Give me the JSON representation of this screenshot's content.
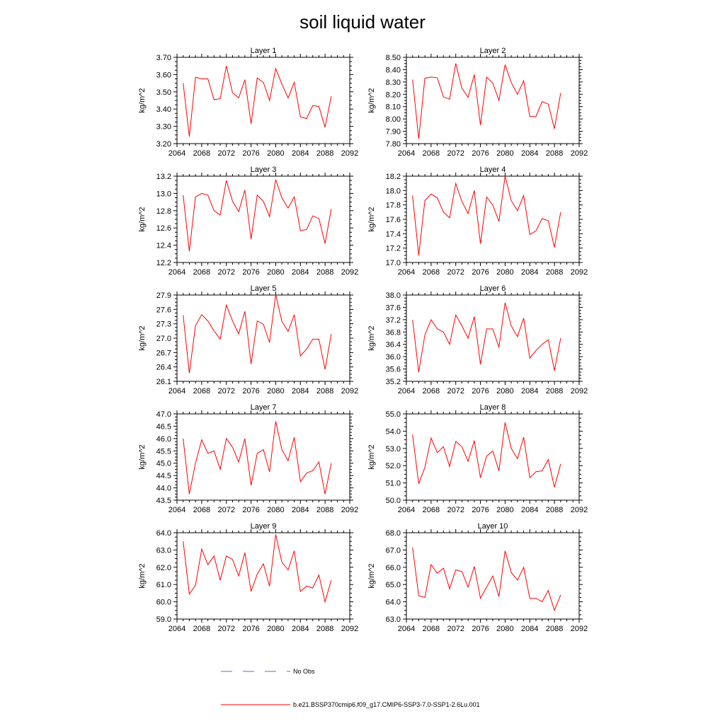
{
  "title": "soil liquid water",
  "colors": {
    "series": "#ff0000",
    "obs": "#6666cc",
    "axis": "#000000"
  },
  "legend": {
    "obs_label": "No Obs",
    "series_label": "b.e21.BSSP370cmip6.f09_g17.CMIP6-SSP3-7.0-SSP1-2.6Lu.001"
  },
  "chart_data": [
    {
      "type": "line",
      "title": "Layer 1",
      "ylabel": "kg/m^2",
      "xlim": [
        2064,
        2092
      ],
      "xticks": [
        2064,
        2068,
        2072,
        2076,
        2080,
        2084,
        2088,
        2092
      ],
      "ylim": [
        3.2,
        3.7
      ],
      "yticks": [
        "3.20",
        "3.30",
        "3.40",
        "3.50",
        "3.60",
        "3.70"
      ],
      "x": [
        2065,
        2066,
        2067,
        2068,
        2069,
        2070,
        2071,
        2072,
        2073,
        2074,
        2075,
        2076,
        2077,
        2078,
        2079,
        2080,
        2081,
        2082,
        2083,
        2084,
        2085,
        2086,
        2087,
        2088,
        2089
      ],
      "values": [
        3.55,
        3.24,
        3.585,
        3.575,
        3.575,
        3.455,
        3.46,
        3.65,
        3.495,
        3.465,
        3.57,
        3.315,
        3.58,
        3.555,
        3.45,
        3.635,
        3.545,
        3.465,
        3.555,
        3.355,
        3.345,
        3.42,
        3.415,
        3.295,
        3.475
      ]
    },
    {
      "type": "line",
      "title": "Layer 2",
      "ylabel": "kg/m^2",
      "xlim": [
        2064,
        2092
      ],
      "xticks": [
        2064,
        2068,
        2072,
        2076,
        2080,
        2084,
        2088,
        2092
      ],
      "ylim": [
        7.8,
        8.5
      ],
      "yticks": [
        "7.80",
        "7.90",
        "8.00",
        "8.10",
        "8.20",
        "8.30",
        "8.40",
        "8.50"
      ],
      "x": [
        2065,
        2066,
        2067,
        2068,
        2069,
        2070,
        2071,
        2072,
        2073,
        2074,
        2075,
        2076,
        2077,
        2078,
        2079,
        2080,
        2081,
        2082,
        2083,
        2084,
        2085,
        2086,
        2087,
        2088,
        2089
      ],
      "values": [
        8.32,
        7.84,
        8.33,
        8.34,
        8.335,
        8.18,
        8.16,
        8.45,
        8.25,
        8.175,
        8.36,
        7.95,
        8.34,
        8.29,
        8.15,
        8.44,
        8.295,
        8.2,
        8.31,
        8.02,
        8.02,
        8.14,
        8.12,
        7.92,
        8.21
      ]
    },
    {
      "type": "line",
      "title": "Layer 3",
      "ylabel": "kg/m^2",
      "xlim": [
        2064,
        2092
      ],
      "xticks": [
        2064,
        2068,
        2072,
        2076,
        2080,
        2084,
        2088,
        2092
      ],
      "ylim": [
        12.2,
        13.2
      ],
      "yticks": [
        "12.2",
        "12.4",
        "12.6",
        "12.8",
        "13.0",
        "13.2"
      ],
      "x": [
        2065,
        2066,
        2067,
        2068,
        2069,
        2070,
        2071,
        2072,
        2073,
        2074,
        2075,
        2076,
        2077,
        2078,
        2079,
        2080,
        2081,
        2082,
        2083,
        2084,
        2085,
        2086,
        2087,
        2088,
        2089
      ],
      "values": [
        12.98,
        12.33,
        12.96,
        13.0,
        12.98,
        12.8,
        12.75,
        13.15,
        12.91,
        12.79,
        13.04,
        12.47,
        12.98,
        12.91,
        12.73,
        13.16,
        12.95,
        12.83,
        12.96,
        12.57,
        12.58,
        12.74,
        12.71,
        12.42,
        12.82
      ]
    },
    {
      "type": "line",
      "title": "Layer 4",
      "ylabel": "kg/m^2",
      "xlim": [
        2064,
        2092
      ],
      "xticks": [
        2064,
        2068,
        2072,
        2076,
        2080,
        2084,
        2088,
        2092
      ],
      "ylim": [
        17.0,
        18.2
      ],
      "yticks": [
        "17.0",
        "17.2",
        "17.4",
        "17.6",
        "17.8",
        "18.0",
        "18.2"
      ],
      "x": [
        2065,
        2066,
        2067,
        2068,
        2069,
        2070,
        2071,
        2072,
        2073,
        2074,
        2075,
        2076,
        2077,
        2078,
        2079,
        2080,
        2081,
        2082,
        2083,
        2084,
        2085,
        2086,
        2087,
        2088,
        2089
      ],
      "values": [
        17.93,
        17.1,
        17.86,
        17.95,
        17.9,
        17.7,
        17.62,
        18.1,
        17.85,
        17.68,
        18.0,
        17.26,
        17.91,
        17.8,
        17.57,
        18.2,
        17.86,
        17.72,
        17.93,
        17.39,
        17.44,
        17.61,
        17.58,
        17.21,
        17.7
      ]
    },
    {
      "type": "line",
      "title": "Layer 5",
      "ylabel": "kg/m^2",
      "xlim": [
        2064,
        2092
      ],
      "xticks": [
        2064,
        2068,
        2072,
        2076,
        2080,
        2084,
        2088,
        2092
      ],
      "ylim": [
        26.1,
        27.9
      ],
      "yticks": [
        "26.1",
        "26.4",
        "26.7",
        "27.0",
        "27.3",
        "27.6",
        "27.9"
      ],
      "x": [
        2065,
        2066,
        2067,
        2068,
        2069,
        2070,
        2071,
        2072,
        2073,
        2074,
        2075,
        2076,
        2077,
        2078,
        2079,
        2080,
        2081,
        2082,
        2083,
        2084,
        2085,
        2086,
        2087,
        2088,
        2089
      ],
      "values": [
        27.48,
        26.27,
        27.26,
        27.49,
        27.36,
        27.15,
        26.98,
        27.69,
        27.36,
        27.09,
        27.56,
        26.46,
        27.36,
        27.29,
        26.91,
        27.91,
        27.35,
        27.14,
        27.49,
        26.63,
        26.77,
        26.98,
        26.98,
        26.35,
        27.09
      ]
    },
    {
      "type": "line",
      "title": "Layer 6",
      "ylabel": "kg/m^2",
      "xlim": [
        2064,
        2092
      ],
      "xticks": [
        2064,
        2068,
        2072,
        2076,
        2080,
        2084,
        2088,
        2092
      ],
      "ylim": [
        35.2,
        38.0
      ],
      "yticks": [
        "35.2",
        "35.6",
        "36.0",
        "36.4",
        "36.8",
        "37.2",
        "37.6",
        "38.0"
      ],
      "x": [
        2065,
        2066,
        2067,
        2068,
        2069,
        2070,
        2071,
        2072,
        2073,
        2074,
        2075,
        2076,
        2077,
        2078,
        2079,
        2080,
        2081,
        2082,
        2083,
        2084,
        2085,
        2086,
        2087,
        2088,
        2089
      ],
      "values": [
        37.2,
        35.5,
        36.7,
        37.2,
        36.9,
        36.8,
        36.4,
        37.35,
        37.0,
        36.6,
        37.3,
        35.75,
        36.9,
        36.9,
        36.3,
        37.75,
        37.0,
        36.65,
        37.25,
        35.95,
        36.2,
        36.4,
        36.55,
        35.55,
        36.6
      ]
    },
    {
      "type": "line",
      "title": "Layer 7",
      "ylabel": "kg/m^2",
      "xlim": [
        2064,
        2092
      ],
      "xticks": [
        2064,
        2068,
        2072,
        2076,
        2080,
        2084,
        2088,
        2092
      ],
      "ylim": [
        43.5,
        47.0
      ],
      "yticks": [
        "43.5",
        "44.0",
        "44.5",
        "45.0",
        "45.5",
        "46.0",
        "46.5",
        "47.0"
      ],
      "x": [
        2065,
        2066,
        2067,
        2068,
        2069,
        2070,
        2071,
        2072,
        2073,
        2074,
        2075,
        2076,
        2077,
        2078,
        2079,
        2080,
        2081,
        2082,
        2083,
        2084,
        2085,
        2086,
        2087,
        2088,
        2089
      ],
      "values": [
        46.0,
        43.75,
        45.0,
        45.95,
        45.4,
        45.5,
        44.75,
        46.0,
        45.65,
        45.05,
        46.0,
        44.1,
        45.4,
        45.55,
        44.65,
        46.7,
        45.55,
        45.1,
        46.05,
        44.25,
        44.6,
        44.7,
        45.05,
        43.75,
        45.0
      ]
    },
    {
      "type": "line",
      "title": "Layer 8",
      "ylabel": "kg/m^2",
      "xlim": [
        2064,
        2092
      ],
      "xticks": [
        2064,
        2068,
        2072,
        2076,
        2080,
        2084,
        2088,
        2092
      ],
      "ylim": [
        50.0,
        55.0
      ],
      "yticks": [
        "50.0",
        "51.0",
        "52.0",
        "53.0",
        "54.0",
        "55.0"
      ],
      "x": [
        2065,
        2066,
        2067,
        2068,
        2069,
        2070,
        2071,
        2072,
        2073,
        2074,
        2075,
        2076,
        2077,
        2078,
        2079,
        2080,
        2081,
        2082,
        2083,
        2084,
        2085,
        2086,
        2087,
        2088,
        2089
      ],
      "values": [
        53.8,
        50.95,
        51.9,
        53.6,
        52.75,
        53.1,
        51.95,
        53.4,
        53.1,
        52.25,
        53.45,
        51.3,
        52.55,
        52.85,
        51.7,
        54.5,
        53.0,
        52.4,
        53.65,
        51.3,
        51.65,
        51.7,
        52.35,
        50.75,
        52.1
      ]
    },
    {
      "type": "line",
      "title": "Layer 9",
      "ylabel": "kg/m^2",
      "xlim": [
        2064,
        2092
      ],
      "xticks": [
        2064,
        2068,
        2072,
        2076,
        2080,
        2084,
        2088,
        2092
      ],
      "ylim": [
        59.0,
        64.0
      ],
      "yticks": [
        "59.0",
        "60.0",
        "61.0",
        "62.0",
        "63.0",
        "64.0"
      ],
      "x": [
        2065,
        2066,
        2067,
        2068,
        2069,
        2070,
        2071,
        2072,
        2073,
        2074,
        2075,
        2076,
        2077,
        2078,
        2079,
        2080,
        2081,
        2082,
        2083,
        2084,
        2085,
        2086,
        2087,
        2088,
        2089
      ],
      "values": [
        63.5,
        60.45,
        60.95,
        63.05,
        62.15,
        62.65,
        61.25,
        62.65,
        62.45,
        61.5,
        62.85,
        60.6,
        61.6,
        62.2,
        60.9,
        63.9,
        62.3,
        61.85,
        62.95,
        60.6,
        60.9,
        60.8,
        61.55,
        60.0,
        61.25
      ]
    },
    {
      "type": "line",
      "title": "Layer 10",
      "ylabel": "kg/m^2",
      "xlim": [
        2064,
        2092
      ],
      "xticks": [
        2064,
        2068,
        2072,
        2076,
        2080,
        2084,
        2088,
        2092
      ],
      "ylim": [
        63.0,
        68.0
      ],
      "yticks": [
        "63.0",
        "64.0",
        "65.0",
        "66.0",
        "67.0",
        "68.0"
      ],
      "x": [
        2065,
        2066,
        2067,
        2068,
        2069,
        2070,
        2071,
        2072,
        2073,
        2074,
        2075,
        2076,
        2077,
        2078,
        2079,
        2080,
        2081,
        2082,
        2083,
        2084,
        2085,
        2086,
        2087,
        2088,
        2089
      ],
      "values": [
        67.15,
        64.35,
        64.25,
        66.15,
        65.65,
        65.95,
        64.75,
        65.85,
        65.75,
        64.85,
        66.05,
        64.2,
        64.85,
        65.5,
        64.3,
        66.95,
        65.7,
        65.25,
        66.0,
        64.2,
        64.2,
        64.0,
        64.65,
        63.5,
        64.4
      ]
    }
  ]
}
